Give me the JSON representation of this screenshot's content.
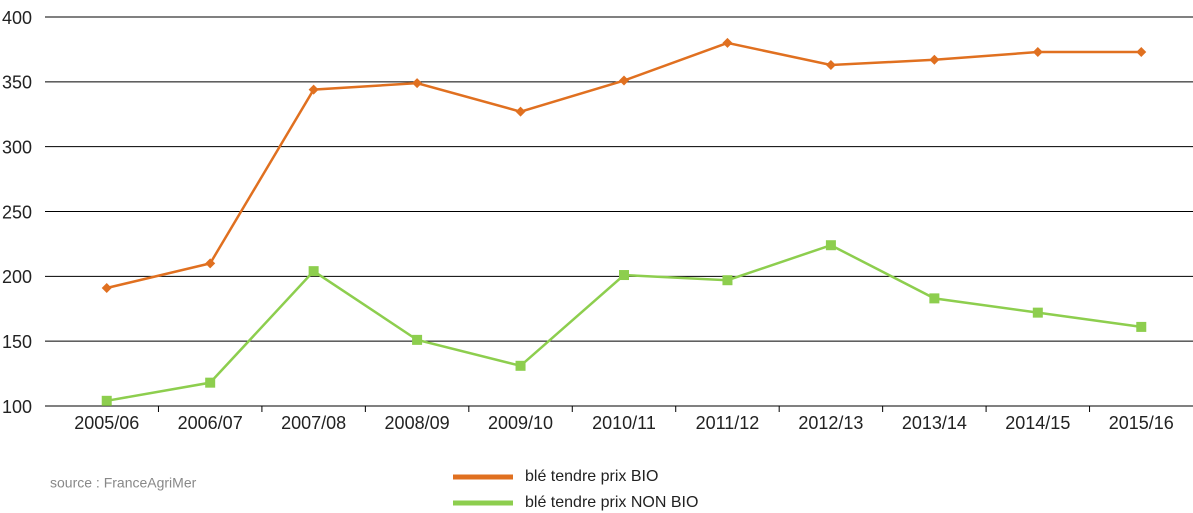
{
  "chart_data": {
    "type": "line",
    "categories": [
      "2005/06",
      "2006/07",
      "2007/08",
      "2008/09",
      "2009/10",
      "2010/11",
      "2011/12",
      "2012/13",
      "2013/14",
      "2014/15",
      "2015/16"
    ],
    "series": [
      {
        "name": "blé tendre prix BIO",
        "color": "#e07020",
        "marker": "diamond",
        "values": [
          191,
          210,
          344,
          349,
          327,
          351,
          380,
          363,
          367,
          373,
          373
        ]
      },
      {
        "name": "blé tendre prix NON BIO",
        "color": "#8dce4e",
        "marker": "square",
        "values": [
          104,
          118,
          204,
          151,
          131,
          201,
          197,
          224,
          183,
          172,
          161
        ]
      }
    ],
    "ylim": [
      100,
      400
    ],
    "yticks": [
      100,
      150,
      200,
      250,
      300,
      350,
      400
    ],
    "grid": true,
    "legend": "bottom",
    "source": "source : FranceAgriMer"
  }
}
